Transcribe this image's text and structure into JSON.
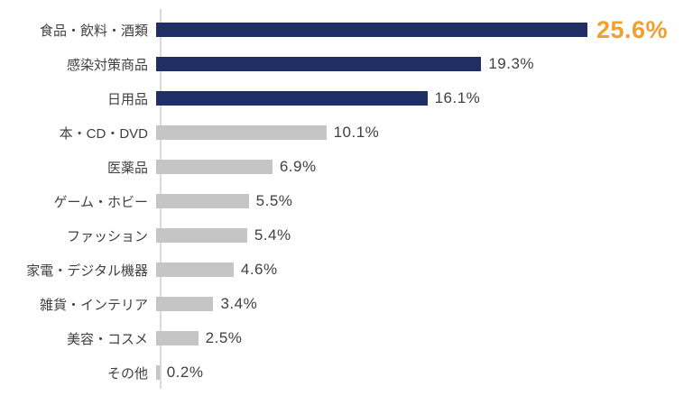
{
  "colors": {
    "navy_bar": "#1f2f64",
    "gray_bar": "#c5c5c5",
    "highlight_value": "#f0a030",
    "text": "#404040",
    "axis": "#d9d9d9"
  },
  "chart_data": {
    "type": "bar",
    "orientation": "horizontal",
    "title": "",
    "xlabel": "",
    "ylabel": "",
    "xlim": [
      0,
      27
    ],
    "grid": false,
    "legend": false,
    "categories": [
      "食品・飲料・酒類",
      "感染対策商品",
      "日用品",
      "本・CD・DVD",
      "医薬品",
      "ゲーム・ホビー",
      "ファッション",
      "家電・デジタル機器",
      "雑貨・インテリア",
      "美容・コスメ",
      "その他"
    ],
    "values": [
      25.6,
      19.3,
      16.1,
      10.1,
      6.9,
      5.5,
      5.4,
      4.6,
      3.4,
      2.5,
      0.2
    ],
    "value_labels": [
      "25.6%",
      "19.3%",
      "16.1%",
      "10.1%",
      "6.9%",
      "5.5%",
      "5.4%",
      "4.6%",
      "3.4%",
      "2.5%",
      "0.2%"
    ],
    "bar_colors": [
      "#1f2f64",
      "#1f2f64",
      "#1f2f64",
      "#c5c5c5",
      "#c5c5c5",
      "#c5c5c5",
      "#c5c5c5",
      "#c5c5c5",
      "#c5c5c5",
      "#c5c5c5",
      "#c5c5c5"
    ],
    "highlight_index": 0
  }
}
